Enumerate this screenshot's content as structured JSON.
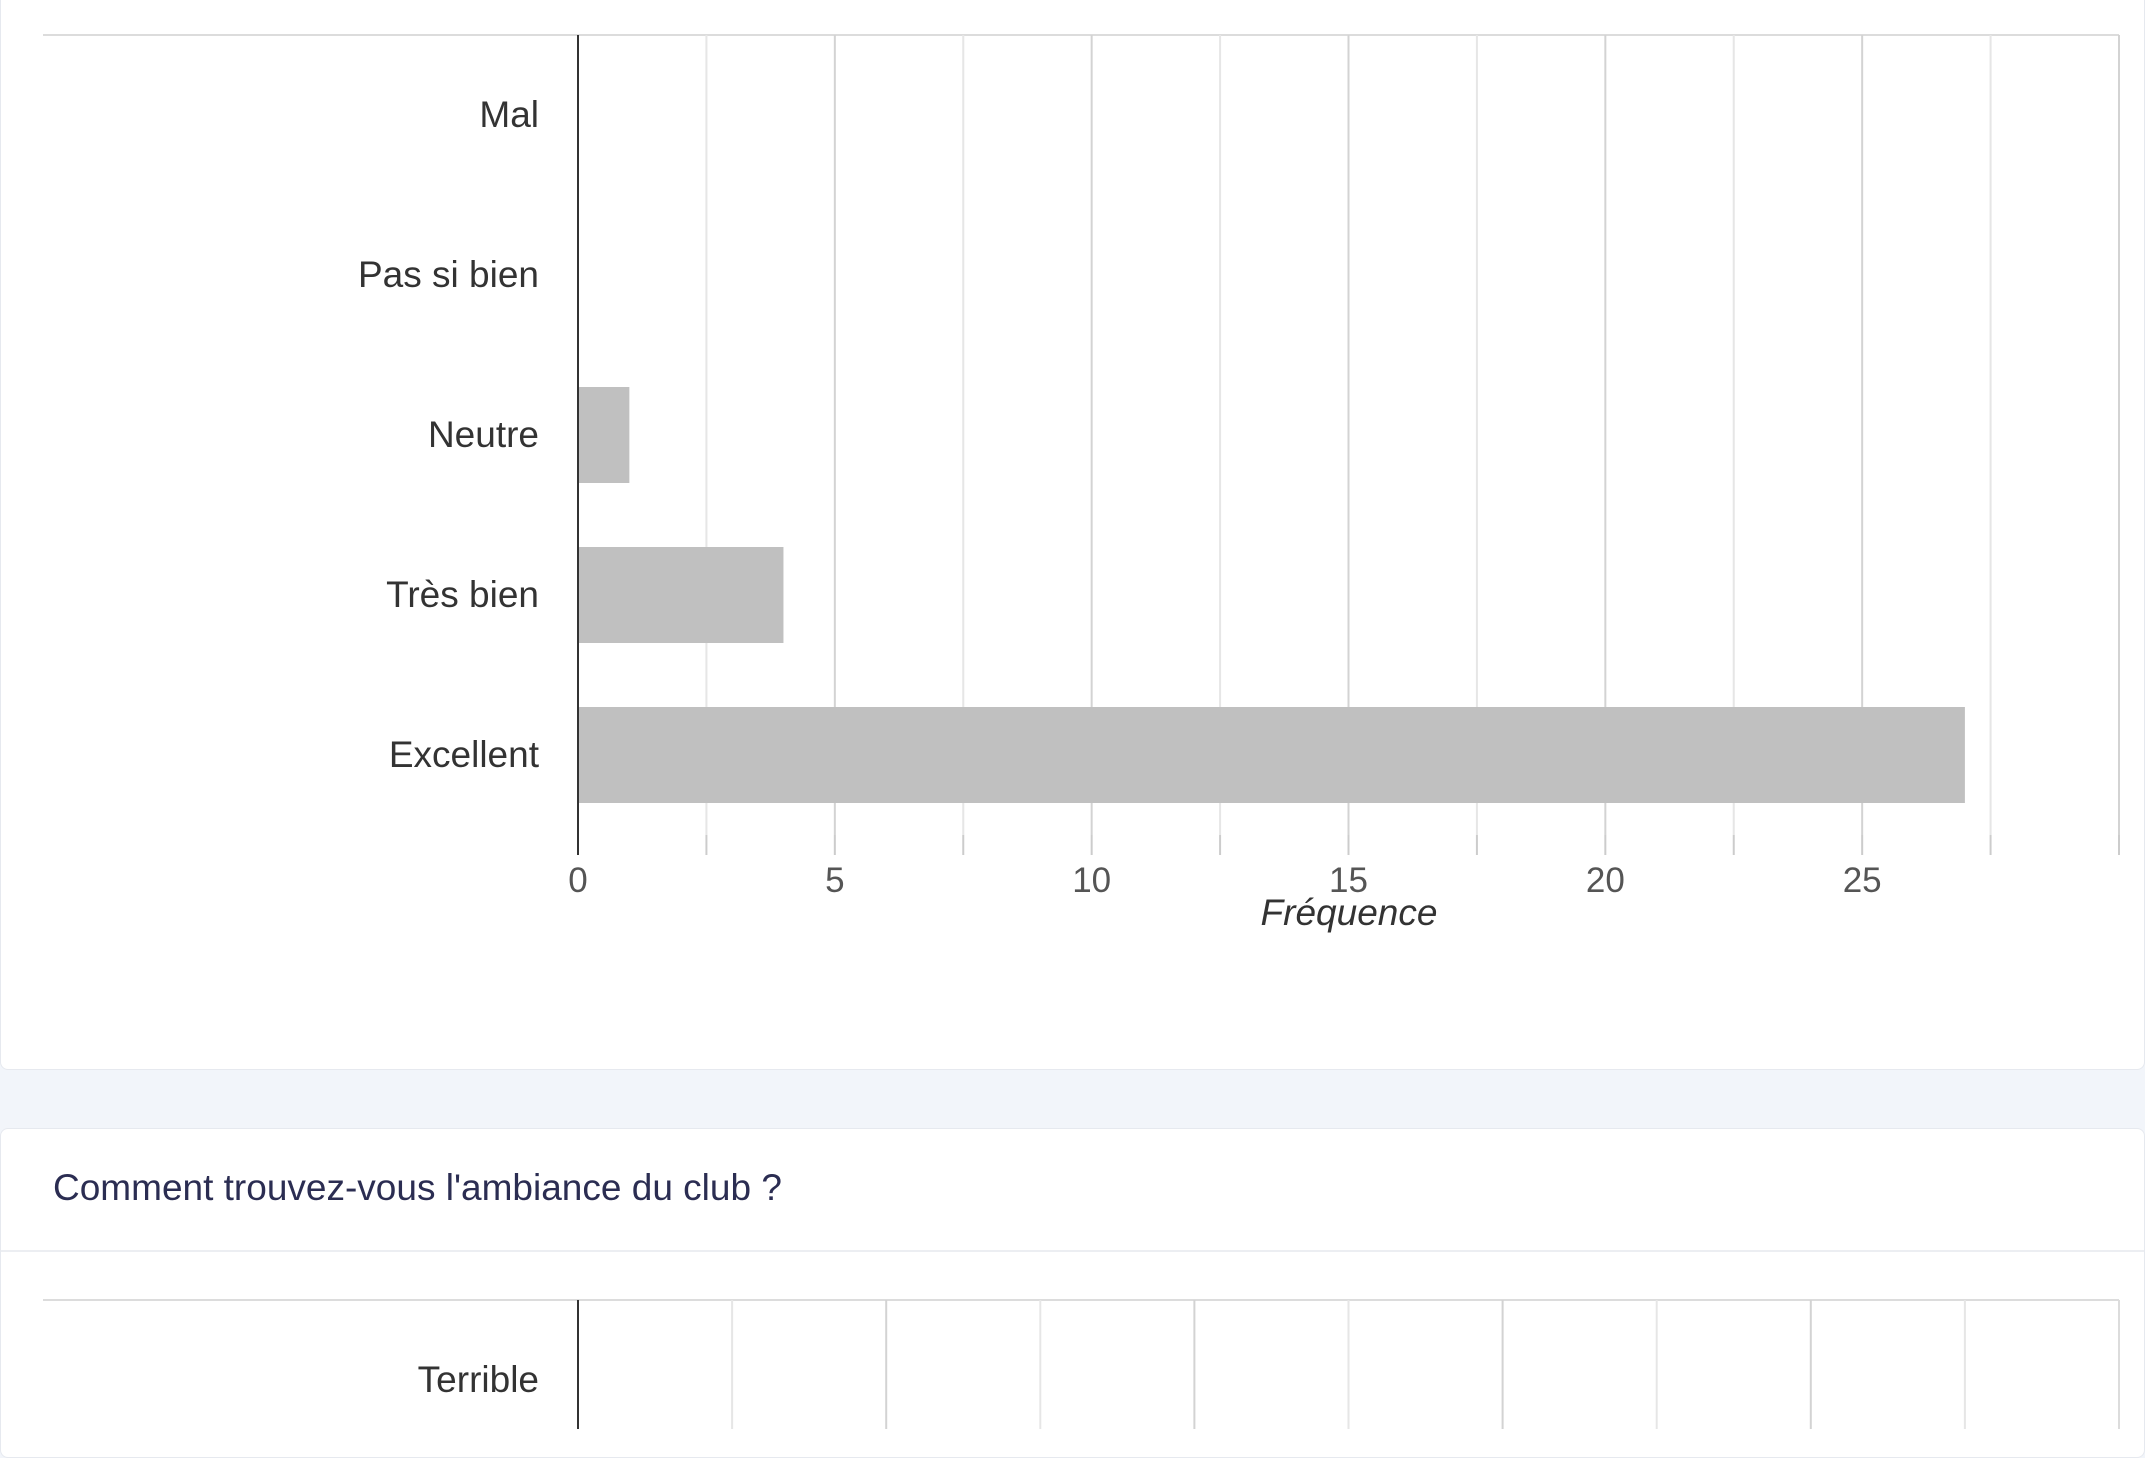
{
  "charts": [
    {
      "chart_data": {
        "type": "bar",
        "orientation": "horizontal",
        "categories": [
          "Mal",
          "Pas si bien",
          "Neutre",
          "Très bien",
          "Excellent"
        ],
        "values": [
          0,
          0,
          1,
          4,
          27
        ],
        "xlabel": "Fréquence",
        "ylabel": "",
        "xlim": [
          0,
          30
        ],
        "ticks": [
          "0",
          "5",
          "10",
          "15",
          "20",
          "25"
        ],
        "tick_values": [
          0,
          5,
          10,
          15,
          20,
          25
        ],
        "grid": true,
        "bar_color": "#c0c0c0"
      }
    },
    {
      "title": "Comment trouvez-vous l'ambiance du club ?",
      "chart_data": {
        "type": "bar",
        "orientation": "horizontal",
        "categories": [
          "Terrible"
        ],
        "values": [
          0
        ],
        "grid": true,
        "bar_color": "#c0c0c0"
      }
    }
  ]
}
